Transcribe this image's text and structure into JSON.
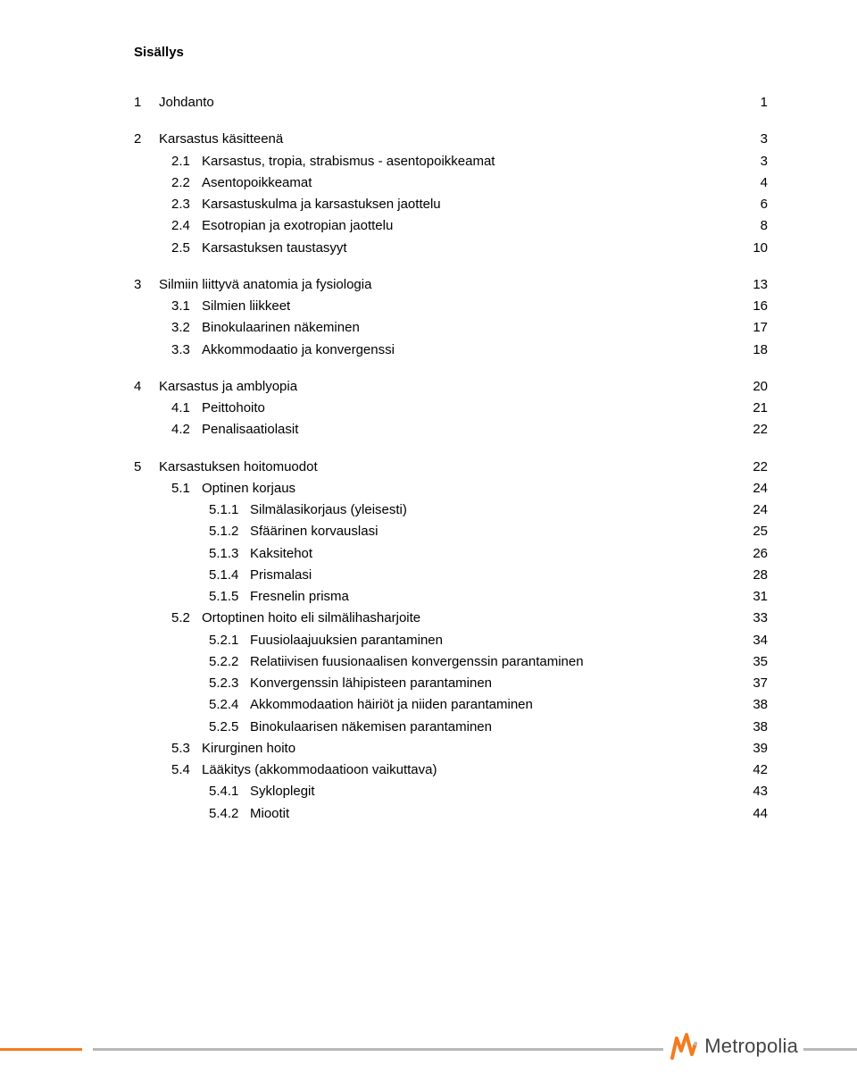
{
  "title": "Sisällys",
  "toc": [
    {
      "level": 1,
      "num": "1",
      "text": "Johdanto",
      "page": "1"
    },
    {
      "level": 1,
      "num": "2",
      "text": "Karsastus käsitteenä",
      "page": "3"
    },
    {
      "level": 2,
      "num": "2.1",
      "text": "Karsastus, tropia, strabismus - asentopoikkeamat",
      "page": "3"
    },
    {
      "level": 2,
      "num": "2.2",
      "text": "Asentopoikkeamat",
      "page": "4"
    },
    {
      "level": 2,
      "num": "2.3",
      "text": "Karsastuskulma ja karsastuksen jaottelu",
      "page": "6"
    },
    {
      "level": 2,
      "num": "2.4",
      "text": "Esotropian ja exotropian jaottelu",
      "page": "8"
    },
    {
      "level": 2,
      "num": "2.5",
      "text": "Karsastuksen taustasyyt",
      "page": "10"
    },
    {
      "level": 1,
      "num": "3",
      "text": "Silmiin liittyvä anatomia ja fysiologia",
      "page": "13"
    },
    {
      "level": 2,
      "num": "3.1",
      "text": "Silmien liikkeet",
      "page": "16"
    },
    {
      "level": 2,
      "num": "3.2",
      "text": "Binokulaarinen näkeminen",
      "page": "17"
    },
    {
      "level": 2,
      "num": "3.3",
      "text": "Akkommodaatio ja konvergenssi",
      "page": "18"
    },
    {
      "level": 1,
      "num": "4",
      "text": "Karsastus ja amblyopia",
      "page": "20"
    },
    {
      "level": 2,
      "num": "4.1",
      "text": "Peittohoito",
      "page": "21"
    },
    {
      "level": 2,
      "num": "4.2",
      "text": "Penalisaatiolasit",
      "page": "22"
    },
    {
      "level": 1,
      "num": "5",
      "text": "Karsastuksen hoitomuodot",
      "page": "22"
    },
    {
      "level": 2,
      "num": "5.1",
      "text": "Optinen korjaus",
      "page": "24"
    },
    {
      "level": 3,
      "num": "5.1.1",
      "text": "Silmälasikorjaus (yleisesti)",
      "page": "24"
    },
    {
      "level": 3,
      "num": "5.1.2",
      "text": "Sfäärinen korvauslasi",
      "page": "25"
    },
    {
      "level": 3,
      "num": "5.1.3",
      "text": "Kaksitehot",
      "page": "26"
    },
    {
      "level": 3,
      "num": "5.1.4",
      "text": "Prismalasi",
      "page": "28"
    },
    {
      "level": 3,
      "num": "5.1.5",
      "text": "Fresnelin prisma",
      "page": "31"
    },
    {
      "level": 2,
      "num": "5.2",
      "text": "Ortoptinen hoito eli silmälihasharjoite",
      "page": "33"
    },
    {
      "level": 3,
      "num": "5.2.1",
      "text": "Fuusiolaajuuksien parantaminen",
      "page": "34"
    },
    {
      "level": 3,
      "num": "5.2.2",
      "text": "Relatiivisen fuusionaalisen konvergenssin parantaminen",
      "page": "35"
    },
    {
      "level": 3,
      "num": "5.2.3",
      "text": "Konvergenssin lähipisteen parantaminen",
      "page": "37"
    },
    {
      "level": 3,
      "num": "5.2.4",
      "text": "Akkommodaation häiriöt ja niiden parantaminen",
      "page": "38"
    },
    {
      "level": 3,
      "num": "5.2.5",
      "text": "Binokulaarisen näkemisen parantaminen",
      "page": "38"
    },
    {
      "level": 2,
      "num": "5.3",
      "text": "Kirurginen hoito",
      "page": "39"
    },
    {
      "level": 2,
      "num": "5.4",
      "text": "Lääkitys (akkommodaatioon vaikuttava)",
      "page": "42"
    },
    {
      "level": 3,
      "num": "5.4.1",
      "text": "Sykloplegit",
      "page": "43"
    },
    {
      "level": 3,
      "num": "5.4.2",
      "text": "Miootit",
      "page": "44"
    }
  ],
  "logo": {
    "text": "Metropolia",
    "mark_fill": "#f47b20",
    "mark_accent": "#b9b8b6"
  },
  "footer_colors": {
    "accent": "#f47b20",
    "rule": "#b9b8b6"
  }
}
